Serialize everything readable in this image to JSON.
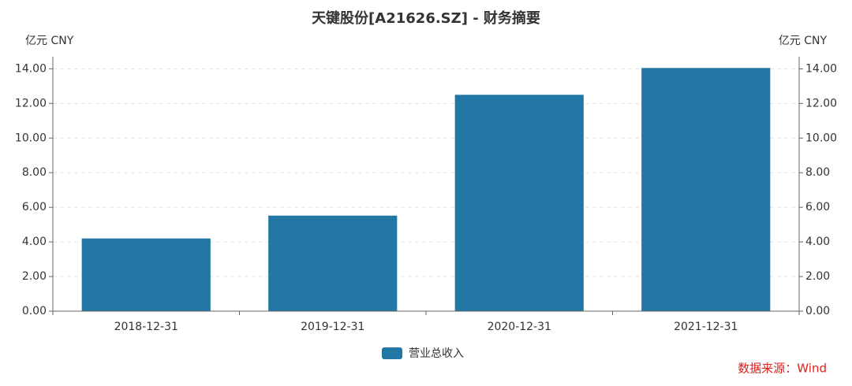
{
  "chart_data": {
    "type": "bar",
    "title": "天键股份[A21626.SZ] - 财务摘要",
    "y_label": "亿元  CNY",
    "y2_label": "亿元  CNY",
    "categories": [
      "2018-12-31",
      "2019-12-31",
      "2020-12-31",
      "2021-12-31"
    ],
    "series": [
      {
        "name": "营业总收入",
        "color": "#2377a4",
        "values": [
          4.2,
          5.52,
          12.5,
          14.05
        ]
      }
    ],
    "ylim": [
      0,
      14.7
    ],
    "yticks": [
      {
        "value": 0,
        "label": "0.00"
      },
      {
        "value": 2,
        "label": "2.00"
      },
      {
        "value": 4,
        "label": "4.00"
      },
      {
        "value": 6,
        "label": "6.00"
      },
      {
        "value": 8,
        "label": "8.00"
      },
      {
        "value": 10,
        "label": "10.00"
      },
      {
        "value": 12,
        "label": "12.00"
      },
      {
        "value": 14,
        "label": "14.00"
      }
    ],
    "y2lim": [
      0,
      14.7
    ],
    "y2ticks": [
      {
        "value": 0,
        "label": "0.00"
      },
      {
        "value": 2,
        "label": "2.00"
      },
      {
        "value": 4,
        "label": "4.00"
      },
      {
        "value": 6,
        "label": "6.00"
      },
      {
        "value": 8,
        "label": "8.00"
      },
      {
        "value": 10,
        "label": "10.00"
      },
      {
        "value": 12,
        "label": "12.00"
      },
      {
        "value": 14,
        "label": "14.00"
      }
    ],
    "grid": true,
    "source": "数据来源：Wind"
  }
}
